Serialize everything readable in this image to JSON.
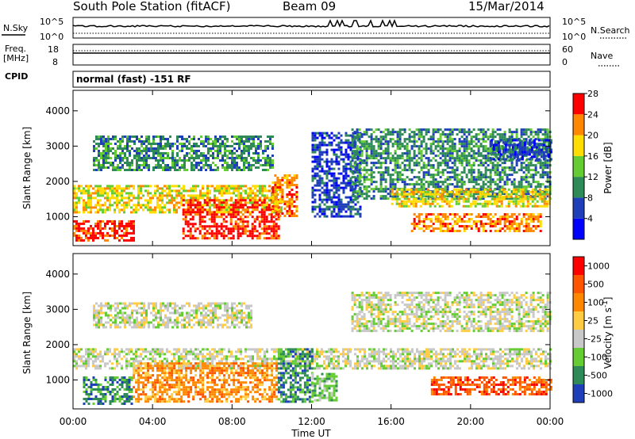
{
  "header": {
    "station": "South Pole Station (fitACF)",
    "beam": "Beam 09",
    "date": "15/Mar/2014"
  },
  "panels": {
    "nsky": {
      "left_label": "N.Sky",
      "left_ticks": [
        "10^5",
        "10^0"
      ],
      "right_ticks": [
        "10^5",
        "10^0"
      ],
      "right_label": "N.Search"
    },
    "freq": {
      "label_line1": "Freq.",
      "label_line2": "[MHz]",
      "left_ticks": [
        "18",
        "8"
      ],
      "right_ticks": [
        "60",
        "0"
      ],
      "right_label": "Nave"
    },
    "cpid": {
      "label": "CPID",
      "value": "normal (fast) -151 RF"
    }
  },
  "chart_data": [
    {
      "type": "heatmap",
      "title": "",
      "xlabel": "Time UT",
      "ylabel": "Slant Range [km]",
      "y_ticks": [
        "1000",
        "2000",
        "3000",
        "4000"
      ],
      "ylim": [
        180,
        4580
      ],
      "x_ticks": [
        "00:00",
        "04:00",
        "08:00",
        "12:00",
        "16:00",
        "20:00",
        "00:00"
      ],
      "xlim": [
        0,
        24
      ],
      "colorbar": {
        "label": "Power [dB]",
        "ticks": [
          "4",
          "8",
          "12",
          "16",
          "20",
          "24",
          "28"
        ],
        "colors": [
          "#0000ff",
          "#1f3fb8",
          "#2e8b57",
          "#66cc33",
          "#ffdd00",
          "#ff8800",
          "#ff0000"
        ]
      },
      "regions": [
        {
          "t0": 0.0,
          "t1": 10.5,
          "r0": 1100,
          "r1": 1900,
          "level": 4
        },
        {
          "t0": 0.0,
          "t1": 3.0,
          "r0": 350,
          "r1": 900,
          "level": 6
        },
        {
          "t0": 5.5,
          "t1": 10.3,
          "r0": 400,
          "r1": 1500,
          "level": 6
        },
        {
          "t0": 10.0,
          "t1": 11.2,
          "r0": 1000,
          "r1": 2200,
          "level": 5
        },
        {
          "t0": 1.0,
          "t1": 10.0,
          "r0": 2300,
          "r1": 3300,
          "level": 2
        },
        {
          "t0": 12.0,
          "t1": 14.5,
          "r0": 1000,
          "r1": 3400,
          "level": 1
        },
        {
          "t0": 14.0,
          "t1": 24.0,
          "r0": 1500,
          "r1": 3500,
          "level": 2
        },
        {
          "t0": 16.0,
          "t1": 24.0,
          "r0": 1300,
          "r1": 1800,
          "level": 4
        },
        {
          "t0": 17.0,
          "t1": 23.5,
          "r0": 600,
          "r1": 1100,
          "level": 5
        },
        {
          "t0": 21.0,
          "t1": 24.0,
          "r0": 2600,
          "r1": 3200,
          "level": 1
        }
      ]
    },
    {
      "type": "heatmap",
      "title": "",
      "xlabel": "Time UT",
      "ylabel": "Slant Range [km]",
      "y_ticks": [
        "1000",
        "2000",
        "3000",
        "4000"
      ],
      "ylim": [
        180,
        4580
      ],
      "x_ticks": [
        "00:00",
        "04:00",
        "08:00",
        "12:00",
        "16:00",
        "20:00",
        "00:00"
      ],
      "xlim": [
        0,
        24
      ],
      "colorbar": {
        "label": "Velocity [m s^-1]",
        "ticks": [
          "1000",
          "500",
          "100",
          "25",
          "-25",
          "-100",
          "-500",
          "-1000"
        ],
        "colors": [
          "#1f3fb8",
          "#2e8b57",
          "#66cc33",
          "#c8c8c8",
          "#ffcc44",
          "#ff8800",
          "#ff5500",
          "#ff0000"
        ]
      },
      "regions": [
        {
          "t0": 0.0,
          "t1": 24.0,
          "r0": 1300,
          "r1": 1900,
          "level": 3
        },
        {
          "t0": 0.5,
          "t1": 3.0,
          "r0": 350,
          "r1": 1100,
          "level": 1
        },
        {
          "t0": 3.0,
          "t1": 10.3,
          "r0": 400,
          "r1": 1500,
          "level": 5
        },
        {
          "t0": 10.3,
          "t1": 12.0,
          "r0": 400,
          "r1": 1900,
          "level": 1
        },
        {
          "t0": 12.0,
          "t1": 13.3,
          "r0": 400,
          "r1": 1200,
          "level": 2
        },
        {
          "t0": 14.0,
          "t1": 24.0,
          "r0": 2400,
          "r1": 3500,
          "level": 3
        },
        {
          "t0": 18.0,
          "t1": 24.0,
          "r0": 600,
          "r1": 1100,
          "level": 6
        },
        {
          "t0": 1.0,
          "t1": 9.0,
          "r0": 2500,
          "r1": 3200,
          "level": 3
        }
      ]
    }
  ]
}
